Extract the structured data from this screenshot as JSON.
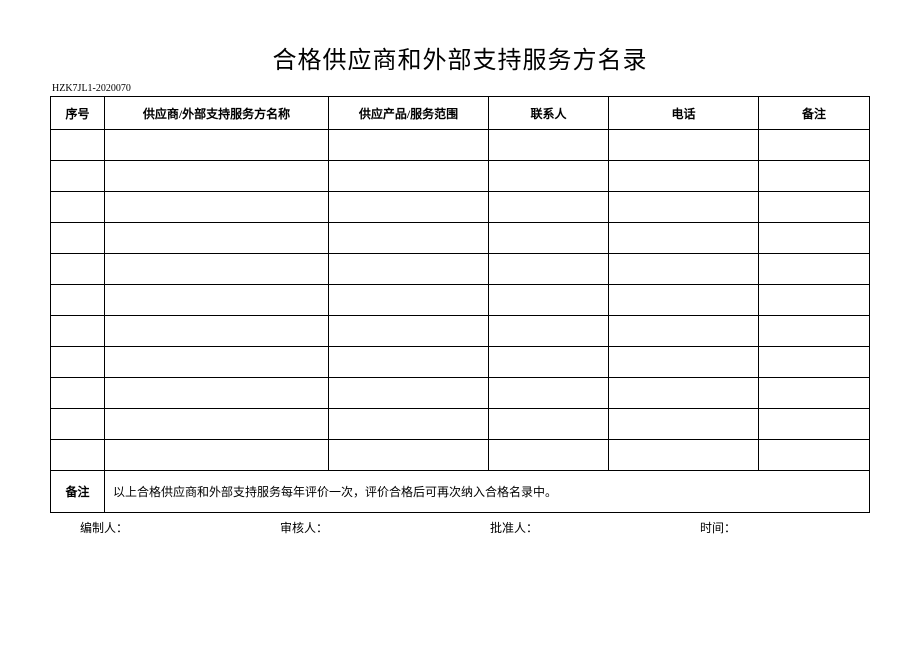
{
  "title": "合格供应商和外部支持服务方名录",
  "doc_code": "HZK7JL1-2020070",
  "table": {
    "headers": {
      "seq": "序号",
      "name": "供应商/外部支持服务方名称",
      "scope": "供应产品/服务范围",
      "contact": "联系人",
      "phone": "电话",
      "remark": "备注"
    },
    "empty_row_count": 11,
    "note_label": "备注",
    "note_content": "以上合格供应商和外部支持服务每年评价一次，评价合格后可再次纳入合格名录中。"
  },
  "footer": {
    "editor": "编制人：",
    "reviewer": "审核人：",
    "approver": "批准人：",
    "time": "时间："
  },
  "style": {
    "page_bg": "#ffffff",
    "border_color": "#000000",
    "title_fontsize": 24,
    "header_fontsize": 12,
    "cell_fontsize": 12,
    "footer_fontsize": 12,
    "doc_code_fontsize": 10
  }
}
